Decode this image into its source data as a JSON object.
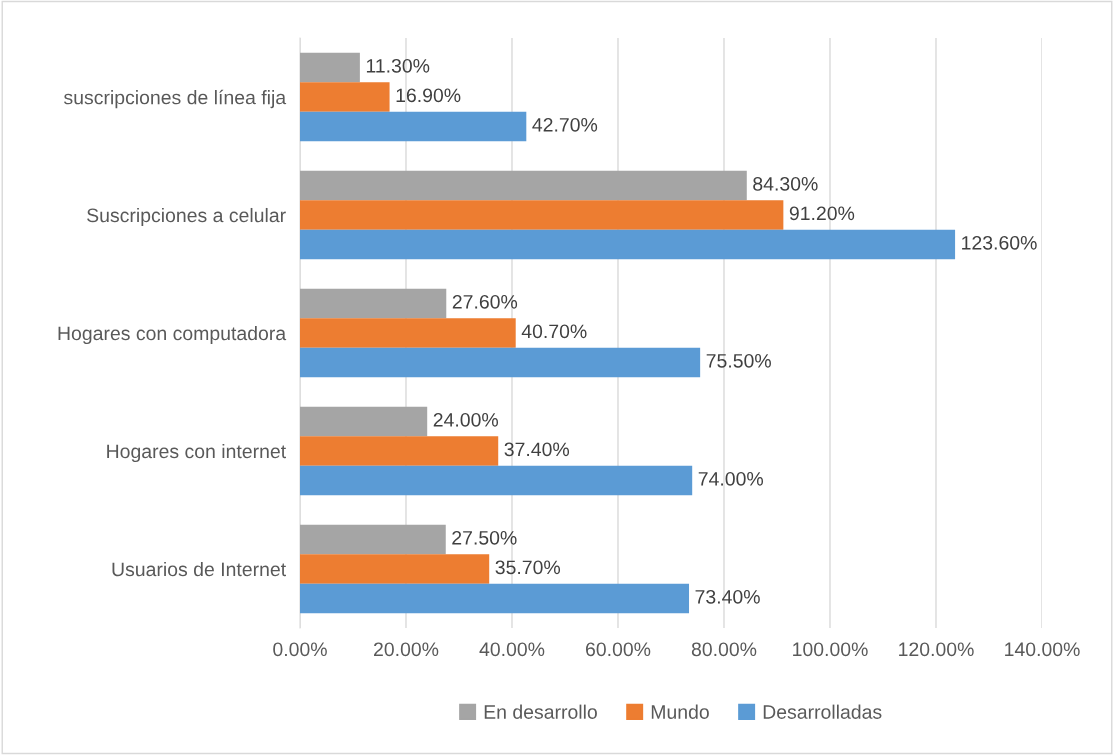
{
  "chart_data": {
    "type": "bar",
    "orientation": "horizontal",
    "categories": [
      "suscripciones de línea fija",
      "Suscripciones a celular",
      "Hogares con computadora",
      "Hogares con internet",
      "Usuarios de Internet"
    ],
    "series": [
      {
        "name": "En desarrollo",
        "color": "#a5a5a5",
        "values": [
          11.3,
          84.3,
          27.6,
          24.0,
          27.5
        ],
        "value_labels": [
          "11.30%",
          "84.30%",
          "27.60%",
          "24.00%",
          "27.50%"
        ]
      },
      {
        "name": "Mundo",
        "color": "#ed7d31",
        "values": [
          16.9,
          91.2,
          40.7,
          37.4,
          35.7
        ],
        "value_labels": [
          "16.90%",
          "91.20%",
          "40.70%",
          "37.40%",
          "35.70%"
        ]
      },
      {
        "name": "Desarrolladas",
        "color": "#5b9bd5",
        "values": [
          42.7,
          123.6,
          75.5,
          74.0,
          73.4
        ],
        "value_labels": [
          "42.70%",
          "123.60%",
          "75.50%",
          "74.00%",
          "73.40%"
        ]
      }
    ],
    "xlim": [
      0,
      140
    ],
    "xticks": [
      {
        "value": 0,
        "label": "0.00%"
      },
      {
        "value": 20,
        "label": "20.00%"
      },
      {
        "value": 40,
        "label": "40.00%"
      },
      {
        "value": 60,
        "label": "60.00%"
      },
      {
        "value": 80,
        "label": "80.00%"
      },
      {
        "value": 100,
        "label": "100.00%"
      },
      {
        "value": 120,
        "label": "120.00%"
      },
      {
        "value": 140,
        "label": "140.00%"
      }
    ],
    "grid": "x",
    "legend": "bottom"
  }
}
